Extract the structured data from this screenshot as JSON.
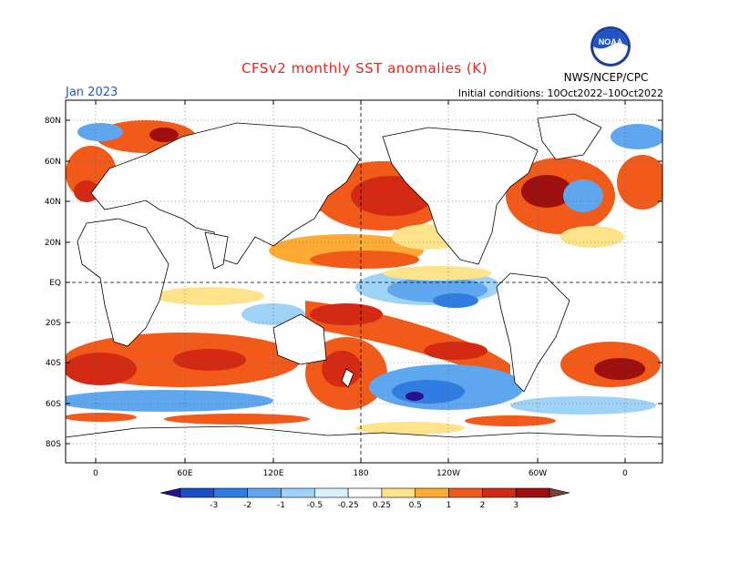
{
  "header": {
    "title": "CFSv2 monthly SST anomalies (K)",
    "month": "Jan 2023",
    "initial_conditions": "Initial conditions: 10Oct2022–10Oct2022",
    "agency": "NWS/NCEP/CPC",
    "logo_text": "NOAA",
    "logo_icon": "noaa-logo-icon"
  },
  "map": {
    "projection": "cylindrical equidistant",
    "lon_range": [
      -20,
      380
    ],
    "lat_range": [
      -90,
      90
    ],
    "lat_ticks": [
      "80N",
      "60N",
      "40N",
      "20N",
      "EQ",
      "20S",
      "40S",
      "60S",
      "80S"
    ],
    "lon_ticks": [
      "0",
      "60E",
      "120E",
      "180",
      "120W",
      "60W",
      "0"
    ],
    "grid": "dotted",
    "dashed_reference_lines": [
      "EQ",
      "180"
    ]
  },
  "colorbar": {
    "ticks": [
      "-3",
      "-2",
      "-1",
      "-0.5",
      "-0.25",
      "0.25",
      "0.5",
      "1",
      "2",
      "3"
    ],
    "colors": [
      "#2b0f8f",
      "#1a4fc5",
      "#2f7de0",
      "#5ea7ef",
      "#9fd2f7",
      "#d8f1fb",
      "#ffffff",
      "#ffe38a",
      "#ffaa33",
      "#f25a1a",
      "#d42a14",
      "#9e0f0f",
      "#7a4030"
    ]
  }
}
